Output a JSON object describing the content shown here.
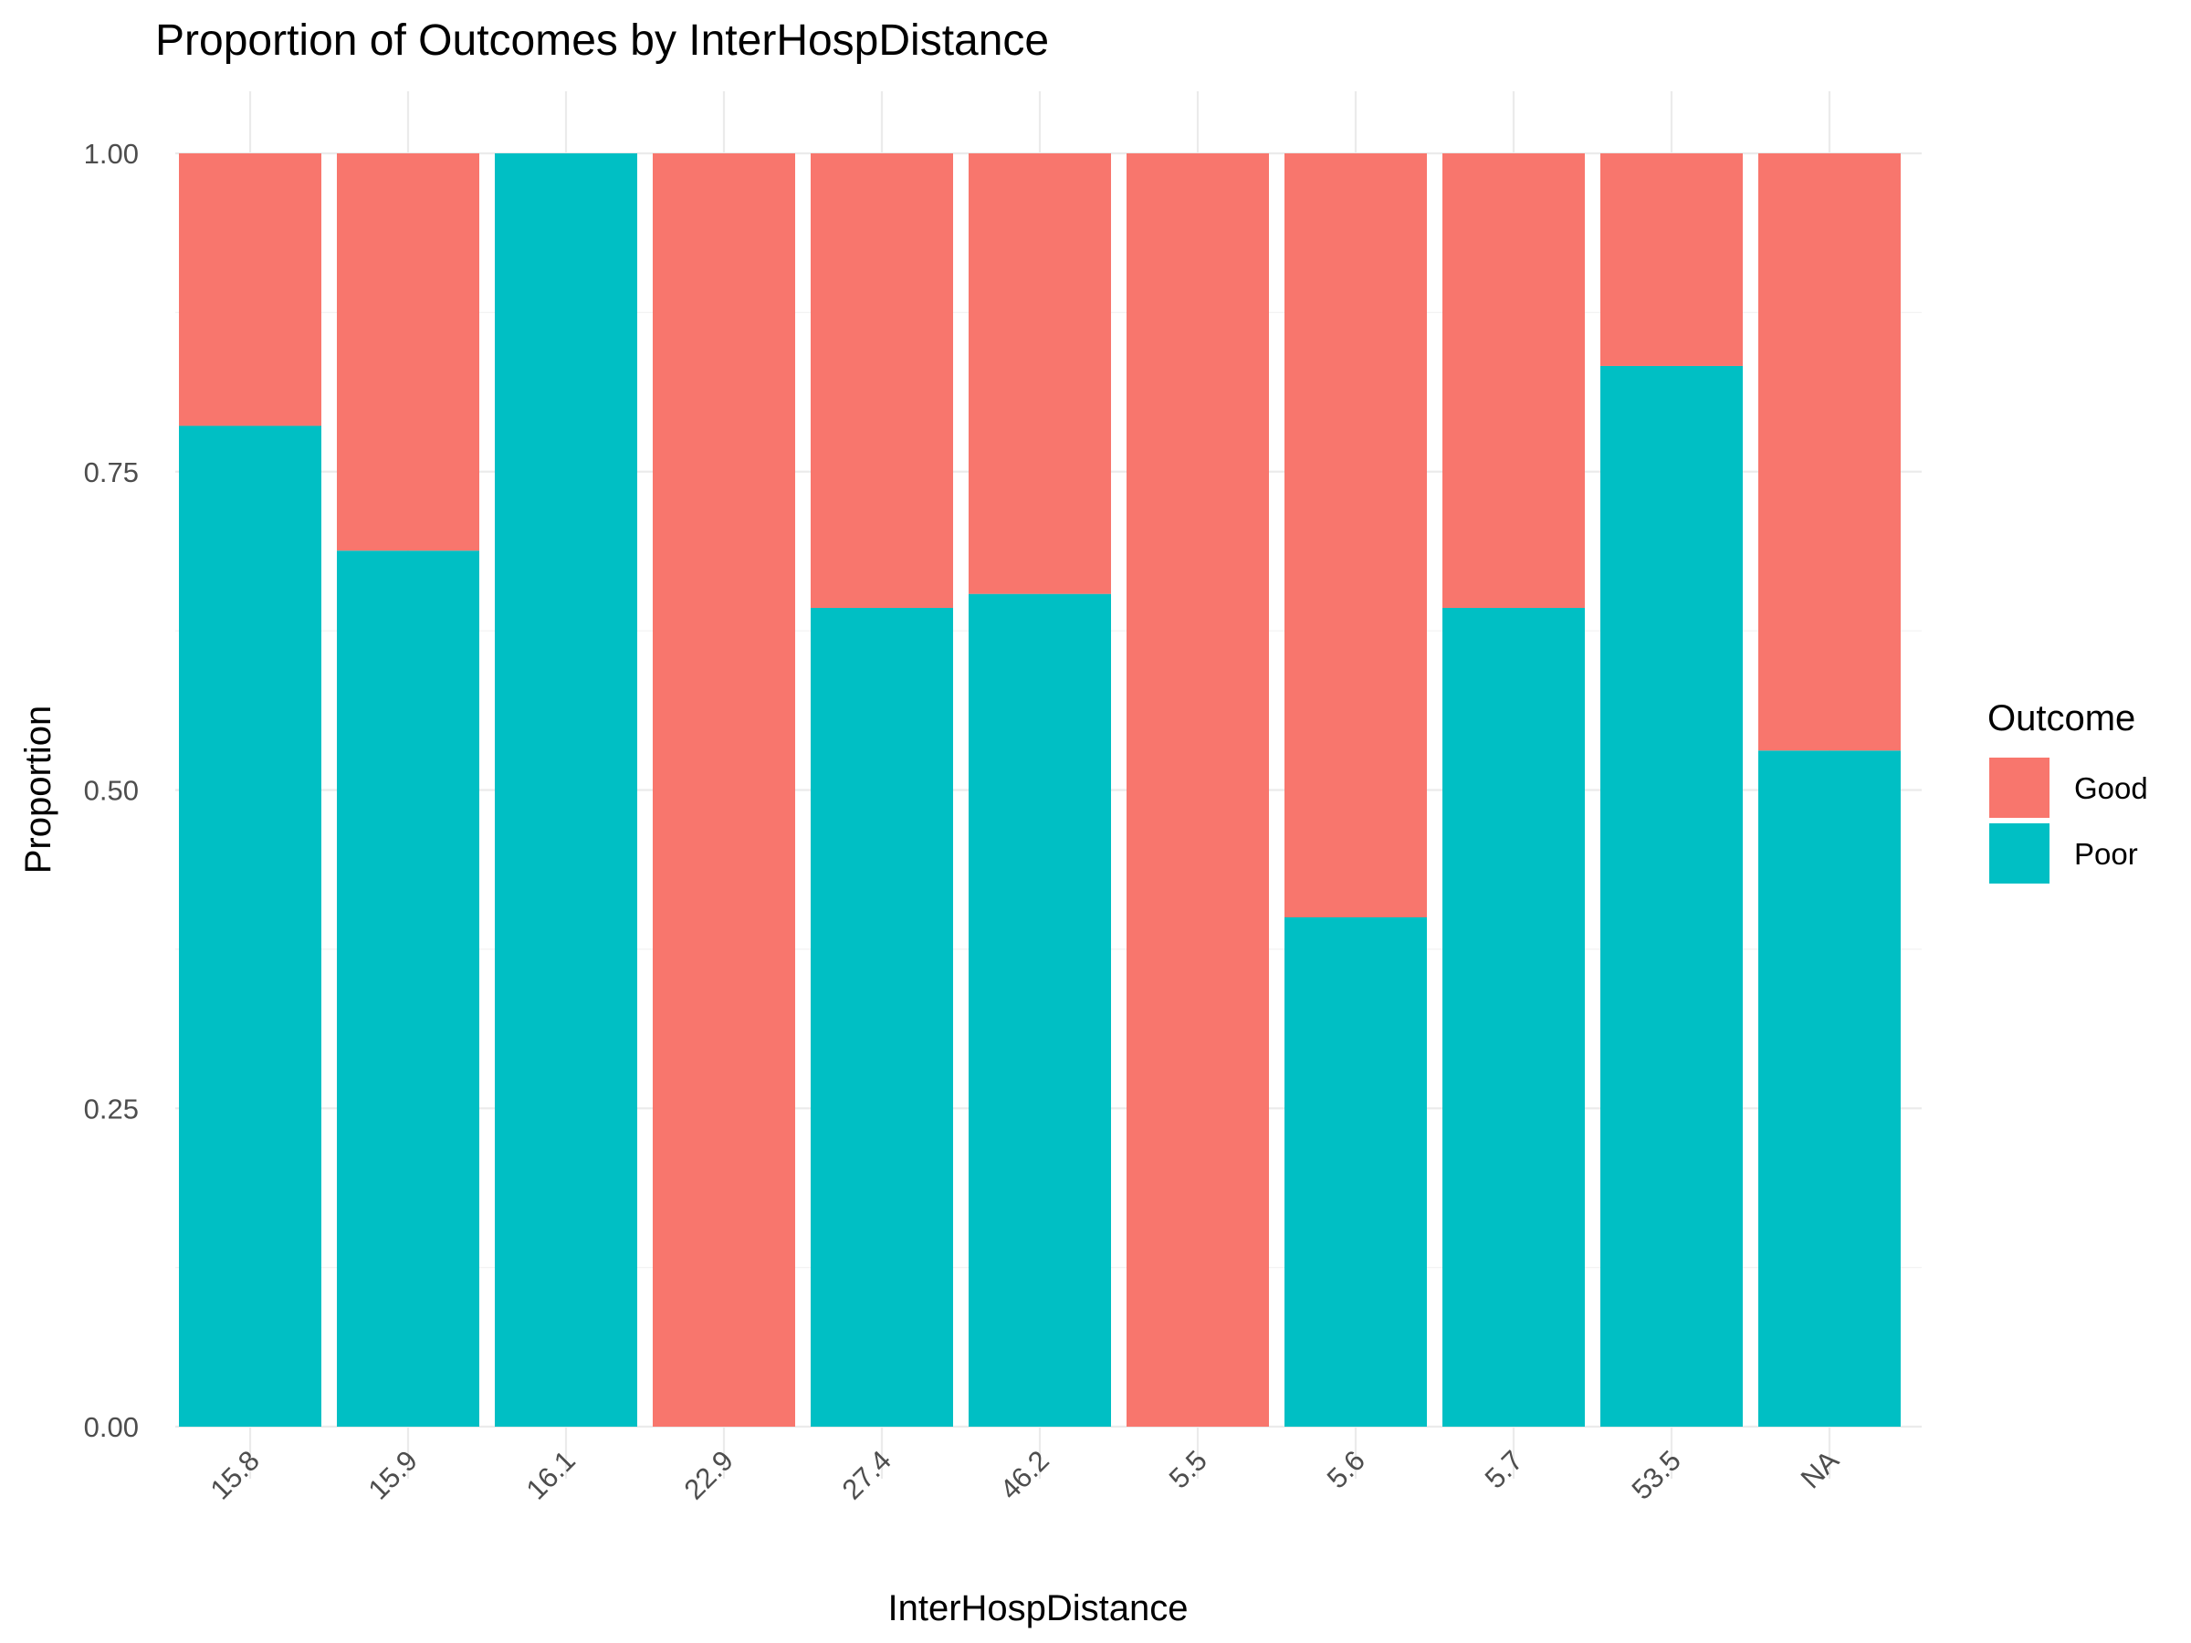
{
  "chart_data": {
    "type": "bar",
    "stacked": true,
    "position": "fill",
    "title": "Proportion of Outcomes by InterHospDistance",
    "xlabel": "InterHospDistance",
    "ylabel": "Proportion",
    "categories": [
      "15.8",
      "15.9",
      "16.1",
      "22.9",
      "27.4",
      "46.2",
      "5.5",
      "5.6",
      "5.7",
      "53.5",
      "NA"
    ],
    "series": [
      {
        "name": "Good",
        "color": "#F8766D",
        "values": [
          0.214,
          0.312,
          0.0,
          1.0,
          0.357,
          0.346,
          1.0,
          0.6,
          0.357,
          0.167,
          0.469
        ]
      },
      {
        "name": "Poor",
        "color": "#00BFC4",
        "values": [
          0.786,
          0.688,
          1.0,
          0.0,
          0.643,
          0.654,
          0.0,
          0.4,
          0.643,
          0.833,
          0.531
        ]
      }
    ],
    "yticks": [
      "0.00",
      "0.25",
      "0.50",
      "0.75",
      "1.00"
    ],
    "ylim": [
      0,
      1
    ],
    "grid": true,
    "legend": {
      "title": "Outcome",
      "placement": "right"
    }
  }
}
